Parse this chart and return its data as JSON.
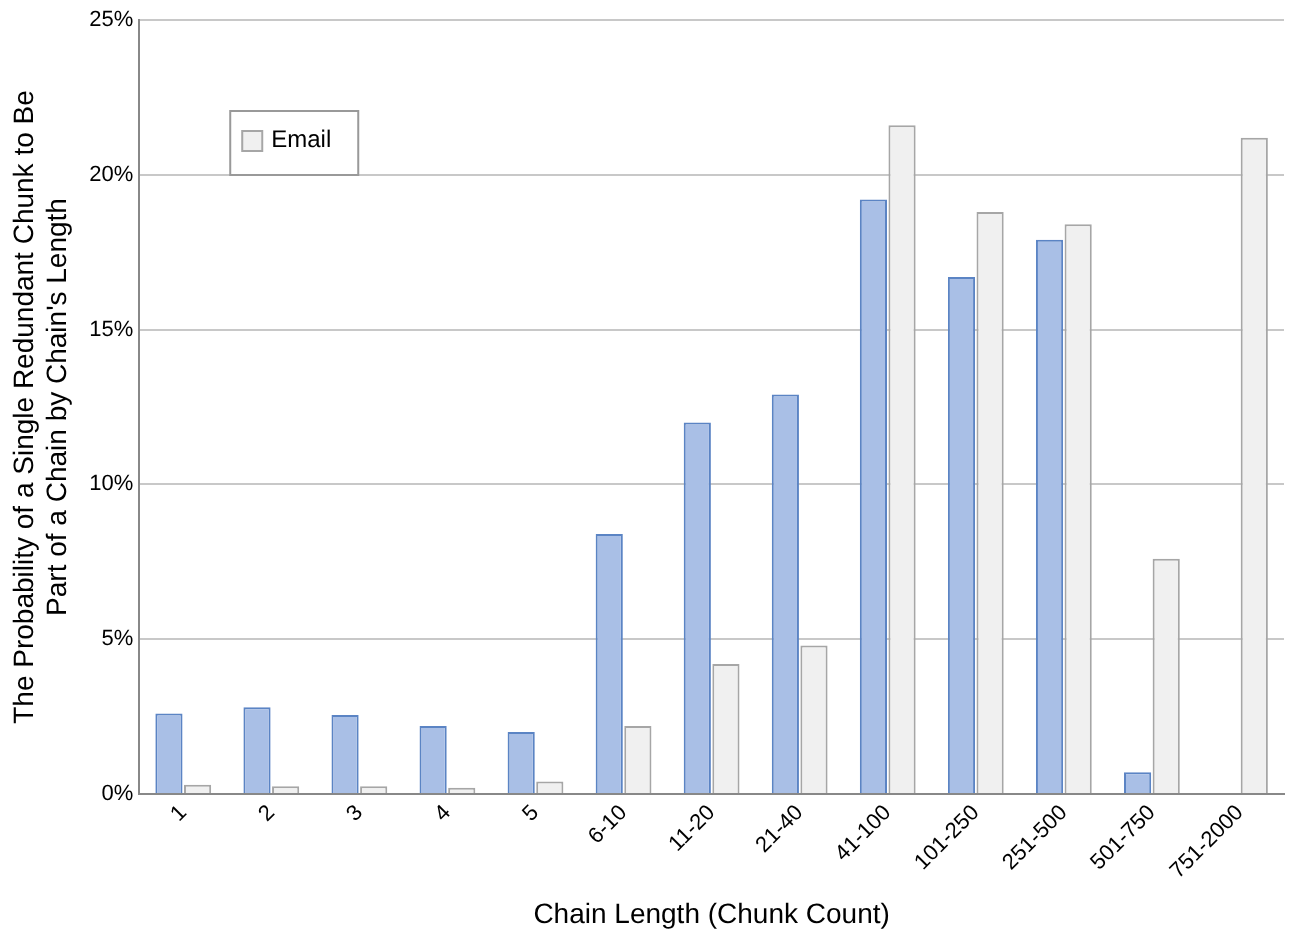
{
  "chart_data": {
    "type": "bar",
    "xlabel": "Chain Length (Chunk Count)",
    "ylabel": "The Probability of a Single Redundant Chunk to Be Part of a Chain by Chain's Length",
    "categories": [
      "1",
      "2",
      "3",
      "4",
      "5",
      "6-10",
      "11-20",
      "21-40",
      "41-100",
      "101-250",
      "251-500",
      "501-750",
      "751-2000"
    ],
    "series": [
      {
        "color": "#a9bfe6",
        "values": [
          2.6,
          2.8,
          2.55,
          2.2,
          2.0,
          8.4,
          12.0,
          12.9,
          19.2,
          16.7,
          17.9,
          0.7,
          0
        ]
      },
      {
        "name": "Email",
        "color": "#f0f0f0",
        "values": [
          0.3,
          0.25,
          0.25,
          0.2,
          0.4,
          2.2,
          4.2,
          4.8,
          21.6,
          18.8,
          18.4,
          7.6,
          21.2
        ]
      }
    ],
    "ylim": [
      0,
      25
    ],
    "yticks": [
      {
        "value": 0,
        "label": "0%"
      },
      {
        "value": 5,
        "label": "5%"
      },
      {
        "value": 10,
        "label": "10%"
      },
      {
        "value": 15,
        "label": "15%"
      },
      {
        "value": 20,
        "label": "20%"
      },
      {
        "value": 25,
        "label": "25%"
      }
    ],
    "grid": "y",
    "legend": "top left"
  }
}
